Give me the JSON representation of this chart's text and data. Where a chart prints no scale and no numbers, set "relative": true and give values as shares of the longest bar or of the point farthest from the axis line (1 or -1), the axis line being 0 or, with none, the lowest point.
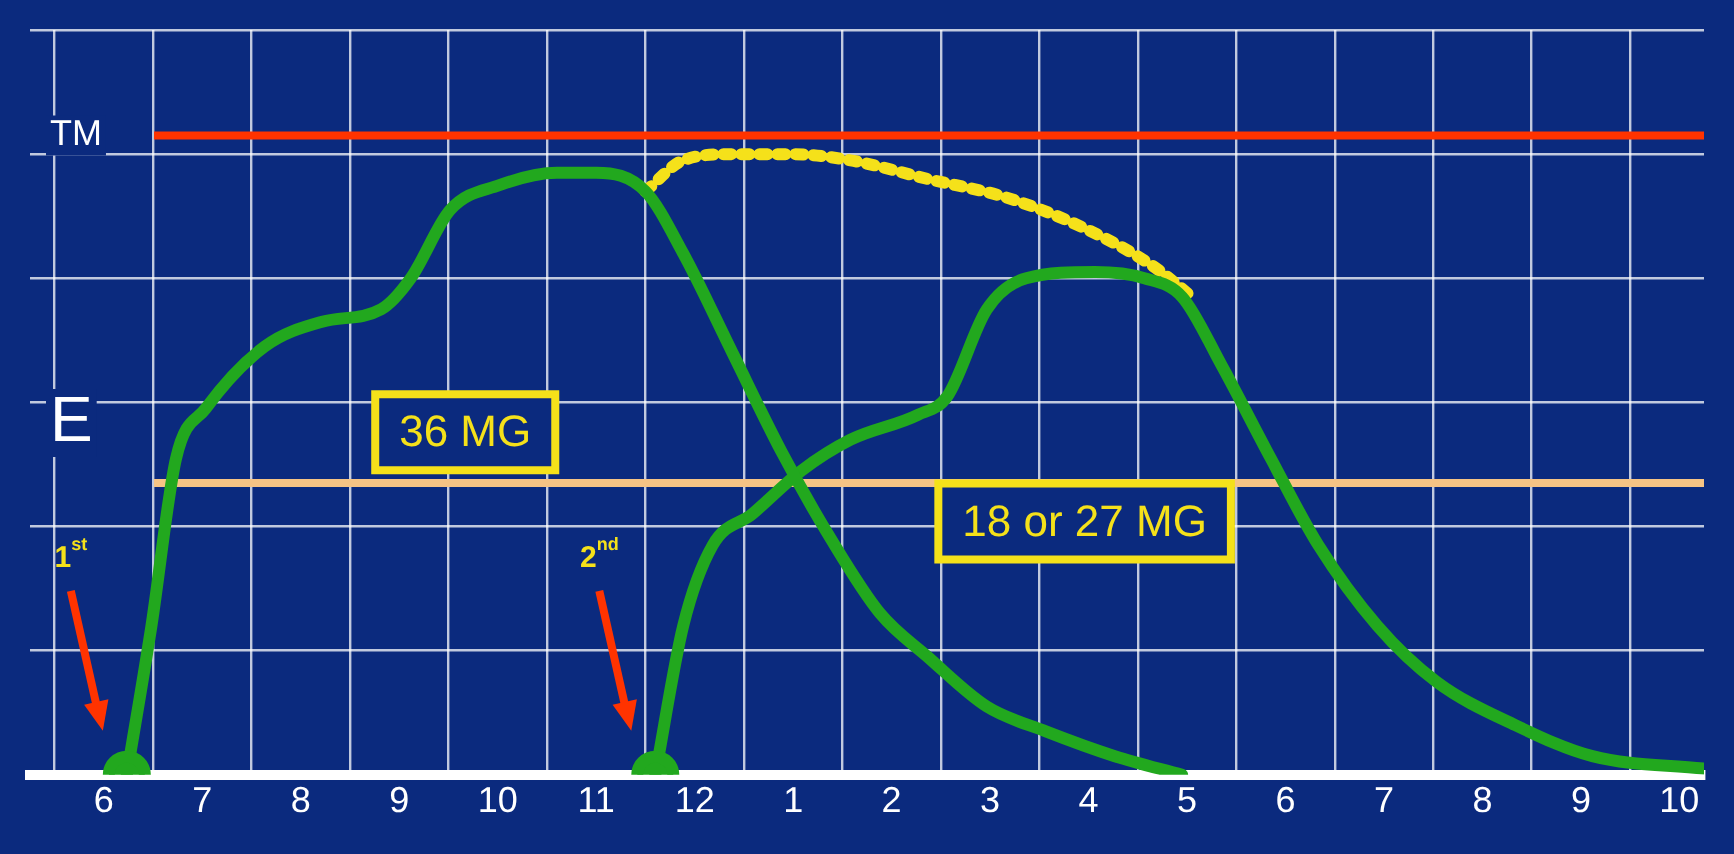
{
  "chart_data": {
    "type": "line",
    "relative": true,
    "grid": true,
    "xlim": [
      "--01-01T05:15",
      "--01-01T22:15"
    ],
    "xticks": [
      {
        "value": "--01-01T06:00",
        "label": "6"
      },
      {
        "value": "--01-01T07:00",
        "label": "7"
      },
      {
        "value": "--01-01T08:00",
        "label": "8"
      },
      {
        "value": "--01-01T09:00",
        "label": "9"
      },
      {
        "value": "--01-01T10:00",
        "label": "10"
      },
      {
        "value": "--01-01T11:00",
        "label": "11"
      },
      {
        "value": "--01-01T12:00",
        "label": "12"
      },
      {
        "value": "--01-01T13:00",
        "label": "1"
      },
      {
        "value": "--01-01T14:00",
        "label": "2"
      },
      {
        "value": "--01-01T15:00",
        "label": "3"
      },
      {
        "value": "--01-01T16:00",
        "label": "4"
      },
      {
        "value": "--01-01T17:00",
        "label": "5"
      },
      {
        "value": "--01-01T18:00",
        "label": "6"
      },
      {
        "value": "--01-01T19:00",
        "label": "7"
      },
      {
        "value": "--01-01T20:00",
        "label": "8"
      },
      {
        "value": "--01-01T21:00",
        "label": "9"
      },
      {
        "value": "--01-01T22:00",
        "label": "10"
      }
    ],
    "series": [
      {
        "color": "#22a81e",
        "x": [
          "--01-01T06:14",
          "--01-01T06:29",
          "--01-01T06:44",
          "--01-01T07:02",
          "--01-01T07:38",
          "--01-01T08:13",
          "--01-01T08:49",
          "--01-01T09:07",
          "--01-01T09:31",
          "--01-01T10:01",
          "--01-01T10:36",
          "--01-01T11:00",
          "--01-01T11:30",
          "--01-01T11:53",
          "--01-01T12:23",
          "--01-01T12:53",
          "--01-01T13:23",
          "--01-01T13:53",
          "--01-01T14:22",
          "--01-01T14:58",
          "--01-01T15:34",
          "--01-01T16:16",
          "--01-01T16:57"
        ],
        "values": [
          0,
          0.24,
          0.51,
          0.59,
          0.69,
          0.73,
          0.75,
          0.8,
          0.91,
          0.95,
          0.97,
          0.97,
          0.94,
          0.84,
          0.68,
          0.52,
          0.38,
          0.26,
          0.19,
          0.11,
          0.07,
          0.03,
          0
        ]
      },
      {
        "color": "#22a81e",
        "x": [
          "--01-01T11:36",
          "--01-01T11:53",
          "--01-01T12:11",
          "--01-01T12:35",
          "--01-01T13:05",
          "--01-01T13:35",
          "--01-01T14:16",
          "--01-01T14:34",
          "--01-01T14:58",
          "--01-01T15:22",
          "--01-01T16:04",
          "--01-01T16:34",
          "--01-01T16:57",
          "--01-01T17:21",
          "--01-01T17:51",
          "--01-01T18:20",
          "--01-01T18:56",
          "--01-01T19:32",
          "--01-01T20:20",
          "--01-01T21:07",
          "--01-01T22:15"
        ],
        "values": [
          0,
          0.24,
          0.37,
          0.42,
          0.49,
          0.54,
          0.58,
          0.61,
          0.75,
          0.8,
          0.81,
          0.8,
          0.77,
          0.66,
          0.51,
          0.37,
          0.24,
          0.15,
          0.08,
          0.03,
          0.01
        ]
      },
      {
        "color": "#f5e11a",
        "line_style": "dotted",
        "x": [
          "--01-01T11:30",
          "--01-01T11:53",
          "--01-01T12:23",
          "--01-01T12:59",
          "--01-01T13:35",
          "--01-01T14:22",
          "--01-01T15:10",
          "--01-01T15:58",
          "--01-01T16:39",
          "--01-01T17:03"
        ],
        "values": [
          0.94,
          0.99,
          1,
          1,
          0.99,
          0.96,
          0.93,
          0.88,
          0.82,
          0.77
        ]
      }
    ],
    "ref_lines": [
      {
        "axis": "y",
        "value": 1.03,
        "label": "TM",
        "color": "#ff3300"
      },
      {
        "axis": "y",
        "value": 0.47,
        "label": "E",
        "color": "#f6c485"
      }
    ],
    "annotations": [
      "36 MG",
      "18 or 27 MG",
      "1$^{st}$",
      "2$^{nd}$"
    ]
  }
}
